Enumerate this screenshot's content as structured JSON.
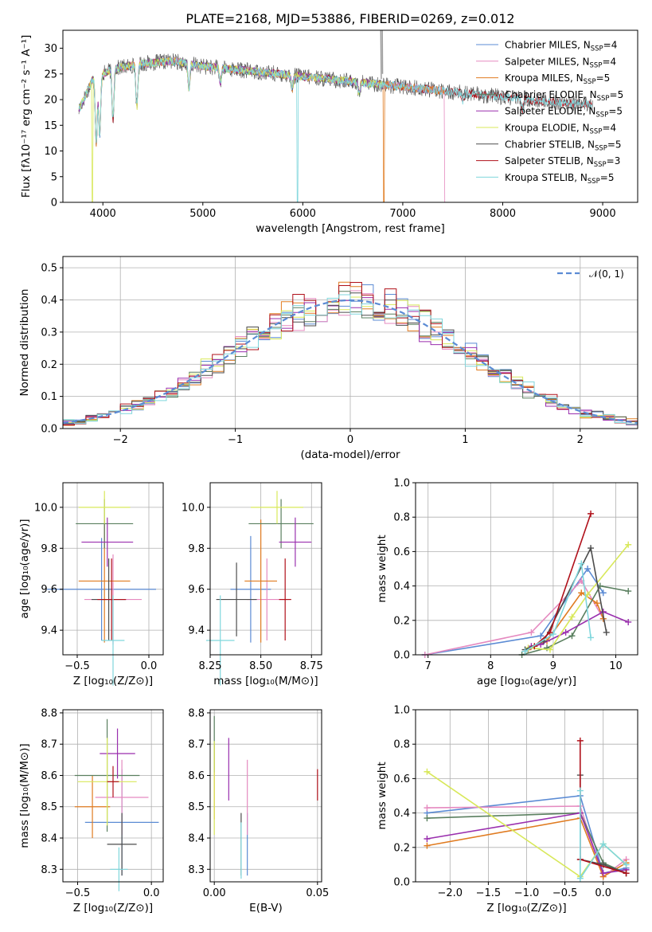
{
  "figure": {
    "title": "PLATE=2168, MJD=53886, FIBERID=0269, z=0.012"
  },
  "colors": {
    "chabrier_miles": "#5b8bd4",
    "salpeter_miles": "#e58ac0",
    "kroupa_miles": "#e07b20",
    "chabrier_elodie": "#5a7f5f",
    "salpeter_elodie": "#9a2fae",
    "kroupa_elodie": "#d8e85a",
    "chabrier_stelib": "#4d4d4d",
    "salpeter_stelib": "#b0101a",
    "kroupa_stelib": "#7fd6dc",
    "normal": "#5b8bd4"
  },
  "chart_data": [
    {
      "id": "spectrum",
      "type": "line",
      "xlabel": "wavelength [Angstrom, rest frame]",
      "ylabel": "Flux [fλ10⁻¹⁷ erg cm⁻² s⁻¹ A⁻¹]",
      "xlim": [
        3600,
        9350
      ],
      "ylim": [
        0,
        33.5
      ],
      "xticks": [
        "4000",
        "5000",
        "6000",
        "7000",
        "8000",
        "9000"
      ],
      "xtick_values": [
        4000,
        5000,
        6000,
        7000,
        8000,
        9000
      ],
      "yticks": [
        "0",
        "5",
        "10",
        "15",
        "20",
        "25",
        "30"
      ],
      "ytick_values": [
        0,
        5,
        10,
        15,
        20,
        25,
        30
      ],
      "grid": false,
      "legend_position": "top-right",
      "legend": [
        {
          "label": "Chabrier MILES, N",
          "sub": "SSP",
          "tail": "=4",
          "color": "chabrier_miles"
        },
        {
          "label": "Salpeter MILES, N",
          "sub": "SSP",
          "tail": "=4",
          "color": "salpeter_miles"
        },
        {
          "label": "Kroupa MILES, N",
          "sub": "SSP",
          "tail": "=5",
          "color": "kroupa_miles"
        },
        {
          "label": "Chabrier ELODIE, N",
          "sub": "SSP",
          "tail": "=5",
          "color": "chabrier_elodie"
        },
        {
          "label": "Salpeter ELODIE, N",
          "sub": "SSP",
          "tail": "=5",
          "color": "salpeter_elodie"
        },
        {
          "label": "Kroupa ELODIE, N",
          "sub": "SSP",
          "tail": "=4",
          "color": "kroupa_elodie"
        },
        {
          "label": "Chabrier STELIB, N",
          "sub": "SSP",
          "tail": "=5",
          "color": "chabrier_stelib"
        },
        {
          "label": "Salpeter STELIB, N",
          "sub": "SSP",
          "tail": "=3",
          "color": "salpeter_stelib"
        },
        {
          "label": "Kroupa STELIB, N",
          "sub": "SSP",
          "tail": "=5",
          "color": "kroupa_stelib"
        }
      ],
      "continuum": [
        [
          3760,
          18
        ],
        [
          3900,
          24
        ],
        [
          4100,
          26
        ],
        [
          4400,
          27
        ],
        [
          4700,
          27.5
        ],
        [
          5000,
          26.5
        ],
        [
          5500,
          25.5
        ],
        [
          6000,
          24.5
        ],
        [
          6500,
          23.5
        ],
        [
          7000,
          22.5
        ],
        [
          7500,
          21.5
        ],
        [
          8000,
          20.5
        ],
        [
          8500,
          19.5
        ],
        [
          8900,
          19
        ]
      ],
      "features": [
        [
          3934,
          6
        ],
        [
          3968,
          8
        ],
        [
          4101,
          12
        ],
        [
          4340,
          15
        ],
        [
          4861,
          20
        ],
        [
          5175,
          22
        ],
        [
          5893,
          21
        ],
        [
          6563,
          20
        ],
        [
          7600,
          19
        ],
        [
          8200,
          17
        ]
      ],
      "drops": [
        {
          "series": "kroupa_elodie",
          "x": 3895
        },
        {
          "series": "kroupa_miles",
          "x": 6810
        },
        {
          "series": "kroupa_stelib",
          "x": 5945
        },
        {
          "series": "salpeter_miles",
          "x": 7420
        }
      ]
    },
    {
      "id": "residual_hist",
      "type": "bar",
      "xlabel": "(data-model)/error",
      "ylabel": "Normed distribution",
      "xlim": [
        -2.5,
        2.5
      ],
      "ylim": [
        0,
        0.535
      ],
      "xticks": [
        "−2",
        "−1",
        "0",
        "1",
        "2"
      ],
      "xtick_values": [
        -2,
        -1,
        0,
        1,
        2
      ],
      "yticks": [
        "0.0",
        "0.1",
        "0.2",
        "0.3",
        "0.4",
        "0.5"
      ],
      "ytick_values": [
        0,
        0.1,
        0.2,
        0.3,
        0.4,
        0.5
      ],
      "grid": true,
      "legend_position": "top-right",
      "normal_label": "𝒩(0, 1)",
      "bin_width": 0.1
    },
    {
      "id": "age_vs_Z",
      "type": "scatter",
      "xlabel": "Z [log₁₀(Z/Z⊙)]",
      "ylabel": "age  [log₁₀(age/yr)]",
      "xlim": [
        -0.6,
        0.1
      ],
      "ylim": [
        9.28,
        10.12
      ],
      "xticks": [
        "−0.5",
        "0.0"
      ],
      "xtick_values": [
        -0.5,
        0.0
      ],
      "yticks": [
        "9.4",
        "9.6",
        "9.8",
        "10.0"
      ],
      "ytick_values": [
        9.4,
        9.6,
        9.8,
        10.0
      ],
      "grid": true,
      "points": [
        {
          "series": "chabrier_miles",
          "x": -0.33,
          "xerr": 0.38,
          "y": 9.6,
          "yerr": 0.25
        },
        {
          "series": "salpeter_miles",
          "x": -0.25,
          "xerr": 0.2,
          "y": 9.55,
          "yerr": 0.22
        },
        {
          "series": "kroupa_miles",
          "x": -0.31,
          "xerr": 0.18,
          "y": 9.64,
          "yerr": 0.3
        },
        {
          "series": "chabrier_elodie",
          "x": -0.31,
          "xerr": 0.2,
          "y": 9.92,
          "yerr": 0.12
        },
        {
          "series": "salpeter_elodie",
          "x": -0.29,
          "xerr": 0.18,
          "y": 9.83,
          "yerr": 0.12
        },
        {
          "series": "kroupa_elodie",
          "x": -0.31,
          "xerr": 0.18,
          "y": 10.0,
          "yerr": 0.08
        },
        {
          "series": "chabrier_stelib",
          "x": -0.28,
          "xerr": 0.12,
          "y": 9.55,
          "yerr": 0.2
        },
        {
          "series": "salpeter_stelib",
          "x": -0.26,
          "xerr": 0.1,
          "y": 9.55,
          "yerr": 0.2
        },
        {
          "series": "kroupa_stelib",
          "x": -0.25,
          "xerr": 0.08,
          "y": 9.35,
          "yerr": 0.22
        }
      ]
    },
    {
      "id": "age_vs_mass",
      "type": "scatter",
      "xlabel": "mass [log₁₀(M/M⊙)]",
      "ylabel": "",
      "xlim": [
        8.25,
        8.8
      ],
      "ylim": [
        9.28,
        10.12
      ],
      "xticks": [
        "8.25",
        "8.50",
        "8.75"
      ],
      "xtick_values": [
        8.25,
        8.5,
        8.75
      ],
      "yticks": [
        "9.4",
        "9.6",
        "9.8",
        "10.0"
      ],
      "ytick_values": [
        9.4,
        9.6,
        9.8,
        10.0
      ],
      "grid": true,
      "points": [
        {
          "series": "chabrier_miles",
          "x": 8.45,
          "xerr": 0.1,
          "y": 9.6,
          "yerr": 0.26
        },
        {
          "series": "salpeter_miles",
          "x": 8.53,
          "xerr": 0.1,
          "y": 9.55,
          "yerr": 0.2
        },
        {
          "series": "kroupa_miles",
          "x": 8.5,
          "xerr": 0.08,
          "y": 9.64,
          "yerr": 0.3
        },
        {
          "series": "chabrier_elodie",
          "x": 8.6,
          "xerr": 0.16,
          "y": 9.92,
          "yerr": 0.12
        },
        {
          "series": "salpeter_elodie",
          "x": 8.67,
          "xerr": 0.08,
          "y": 9.83,
          "yerr": 0.12
        },
        {
          "series": "kroupa_elodie",
          "x": 8.58,
          "xerr": 0.13,
          "y": 10.0,
          "yerr": 0.08
        },
        {
          "series": "chabrier_stelib",
          "x": 8.38,
          "xerr": 0.1,
          "y": 9.55,
          "yerr": 0.18
        },
        {
          "series": "salpeter_stelib",
          "x": 8.62,
          "xerr": 0.03,
          "y": 9.55,
          "yerr": 0.2
        },
        {
          "series": "kroupa_stelib",
          "x": 8.3,
          "xerr": 0.07,
          "y": 9.35,
          "yerr": 0.22
        }
      ]
    },
    {
      "id": "weight_vs_age",
      "type": "line",
      "xlabel": "age  [log₁₀(age/yr)]",
      "ylabel": "mass weight",
      "xlim": [
        6.8,
        10.35
      ],
      "ylim": [
        0,
        1.0
      ],
      "xticks": [
        "7",
        "8",
        "9",
        "10"
      ],
      "xtick_values": [
        7,
        8,
        9,
        10
      ],
      "yticks": [
        "0.0",
        "0.2",
        "0.4",
        "0.6",
        "0.8",
        "1.0"
      ],
      "ytick_values": [
        0,
        0.2,
        0.4,
        0.6,
        0.8,
        1.0
      ],
      "grid": true,
      "series": [
        {
          "series": "chabrier_miles",
          "x": [
            6.95,
            8.8,
            9.55,
            9.8
          ],
          "y": [
            0.0,
            0.11,
            0.5,
            0.36
          ]
        },
        {
          "series": "salpeter_miles",
          "x": [
            6.95,
            8.65,
            9.45,
            9.8
          ],
          "y": [
            0.0,
            0.13,
            0.43,
            0.21
          ]
        },
        {
          "series": "kroupa_miles",
          "x": [
            8.6,
            8.9,
            9.45,
            9.7,
            9.8
          ],
          "y": [
            0.03,
            0.08,
            0.36,
            0.3,
            0.21
          ]
        },
        {
          "series": "chabrier_elodie",
          "x": [
            8.5,
            8.9,
            9.3,
            9.75,
            10.2
          ],
          "y": [
            0.0,
            0.04,
            0.11,
            0.4,
            0.37
          ]
        },
        {
          "series": "salpeter_elodie",
          "x": [
            8.65,
            8.8,
            9.2,
            9.8,
            10.2
          ],
          "y": [
            0.05,
            0.06,
            0.13,
            0.25,
            0.19
          ]
        },
        {
          "series": "kroupa_elodie",
          "x": [
            8.6,
            8.95,
            9.3,
            9.55,
            10.2
          ],
          "y": [
            0.04,
            0.03,
            0.22,
            0.35,
            0.64
          ]
        },
        {
          "series": "chabrier_stelib",
          "x": [
            8.55,
            8.85,
            9.6,
            9.85
          ],
          "y": [
            0.03,
            0.08,
            0.62,
            0.13
          ]
        },
        {
          "series": "salpeter_stelib",
          "x": [
            8.7,
            8.95,
            9.6
          ],
          "y": [
            0.05,
            0.13,
            0.82
          ]
        },
        {
          "series": "kroupa_stelib",
          "x": [
            8.55,
            9.0,
            9.45,
            9.6
          ],
          "y": [
            0.02,
            0.12,
            0.53,
            0.1
          ]
        }
      ]
    },
    {
      "id": "mass_vs_Z",
      "type": "scatter",
      "xlabel": "Z [log₁₀(Z/Z⊙)]",
      "ylabel": "mass [log₁₀(M/M⊙)]",
      "xlim": [
        -0.6,
        0.08
      ],
      "ylim": [
        8.26,
        8.81
      ],
      "xticks": [
        "−0.5",
        "0.0"
      ],
      "xtick_values": [
        -0.5,
        0.0
      ],
      "yticks": [
        "8.3",
        "8.4",
        "8.5",
        "8.6",
        "8.7",
        "8.8"
      ],
      "ytick_values": [
        8.3,
        8.4,
        8.5,
        8.6,
        8.7,
        8.8
      ],
      "grid": true,
      "points": [
        {
          "series": "chabrier_miles",
          "x": -0.2,
          "xerr": 0.25,
          "y": 8.45,
          "yerr": 0.17
        },
        {
          "series": "salpeter_miles",
          "x": -0.2,
          "xerr": 0.18,
          "y": 8.53,
          "yerr": 0.12
        },
        {
          "series": "kroupa_miles",
          "x": -0.4,
          "xerr": 0.12,
          "y": 8.5,
          "yerr": 0.1
        },
        {
          "series": "chabrier_elodie",
          "x": -0.3,
          "xerr": 0.22,
          "y": 8.6,
          "yerr": 0.18
        },
        {
          "series": "salpeter_elodie",
          "x": -0.23,
          "xerr": 0.12,
          "y": 8.67,
          "yerr": 0.08
        },
        {
          "series": "kroupa_elodie",
          "x": -0.3,
          "xerr": 0.2,
          "y": 8.58,
          "yerr": 0.14
        },
        {
          "series": "chabrier_stelib",
          "x": -0.2,
          "xerr": 0.1,
          "y": 8.38,
          "yerr": 0.1
        },
        {
          "series": "salpeter_stelib",
          "x": -0.26,
          "xerr": 0.04,
          "y": 8.58,
          "yerr": 0.05
        },
        {
          "series": "kroupa_stelib",
          "x": -0.22,
          "xerr": 0.06,
          "y": 8.3,
          "yerr": 0.07
        }
      ]
    },
    {
      "id": "mass_vs_ebv",
      "type": "scatter",
      "xlabel": "E(B-V)",
      "ylabel": "",
      "xlim": [
        -0.002,
        0.052
      ],
      "ylim": [
        8.26,
        8.81
      ],
      "xticks": [
        "0.00",
        "0.05"
      ],
      "xtick_values": [
        0.0,
        0.05
      ],
      "yticks": [
        "8.3",
        "8.4",
        "8.5",
        "8.6",
        "8.7",
        "8.8"
      ],
      "ytick_values": [
        8.3,
        8.4,
        8.5,
        8.6,
        8.7,
        8.8
      ],
      "grid": true,
      "points": [
        {
          "series": "chabrier_miles",
          "x": 0.016,
          "y": 8.38,
          "yerr": 0.1
        },
        {
          "series": "salpeter_miles",
          "x": 0.016,
          "y": 8.53,
          "yerr": 0.12
        },
        {
          "series": "kroupa_miles",
          "x": 0.0,
          "y": 8.58,
          "yerr": 0.12
        },
        {
          "series": "chabrier_elodie",
          "x": 0.0,
          "y": 8.7,
          "yerr": 0.09
        },
        {
          "series": "salpeter_elodie",
          "x": 0.007,
          "y": 8.62,
          "yerr": 0.1
        },
        {
          "series": "kroupa_elodie",
          "x": 0.0,
          "y": 8.56,
          "yerr": 0.15
        },
        {
          "series": "chabrier_stelib",
          "x": 0.013,
          "y": 8.38,
          "yerr": 0.1
        },
        {
          "series": "salpeter_stelib",
          "x": 0.05,
          "y": 8.57,
          "yerr": 0.05
        },
        {
          "series": "kroupa_stelib",
          "x": 0.013,
          "y": 8.36,
          "yerr": 0.09
        }
      ]
    },
    {
      "id": "weight_vs_Z",
      "type": "line",
      "xlabel": "Z [log₁₀(Z/Z⊙)]",
      "ylabel": "mass weight",
      "xlim": [
        -2.45,
        0.45
      ],
      "ylim": [
        0,
        1.0
      ],
      "xticks": [
        "−2.0",
        "−1.5",
        "−1.0",
        "−0.5",
        "0.0"
      ],
      "xtick_values": [
        -2.0,
        -1.5,
        -1.0,
        -0.5,
        0.0
      ],
      "yticks": [
        "0.0",
        "0.2",
        "0.4",
        "0.6",
        "0.8",
        "1.0"
      ],
      "ytick_values": [
        0,
        0.2,
        0.4,
        0.6,
        0.8,
        1.0
      ],
      "grid": true,
      "series": [
        {
          "series": "chabrier_miles",
          "x": [
            -2.3,
            -0.3,
            0.0,
            0.3
          ],
          "y": [
            0.4,
            0.5,
            0.05,
            0.08
          ]
        },
        {
          "series": "salpeter_miles",
          "x": [
            -2.3,
            -0.3,
            0.0,
            0.3
          ],
          "y": [
            0.43,
            0.44,
            0.03,
            0.13
          ]
        },
        {
          "series": "kroupa_miles",
          "x": [
            -2.3,
            -0.3,
            0.0,
            0.3
          ],
          "y": [
            0.21,
            0.37,
            0.03,
            0.11
          ]
        },
        {
          "series": "chabrier_elodie",
          "x": [
            -2.3,
            -0.3,
            0.0,
            0.3
          ],
          "y": [
            0.37,
            0.4,
            0.11,
            0.05
          ]
        },
        {
          "series": "salpeter_elodie",
          "x": [
            -2.3,
            -0.3,
            0.0,
            0.3
          ],
          "y": [
            0.25,
            0.4,
            0.05,
            0.07
          ]
        },
        {
          "series": "kroupa_elodie",
          "x": [
            -2.3,
            -0.3,
            0.0,
            0.3
          ],
          "y": [
            0.64,
            0.03,
            0.22,
            0.1
          ]
        },
        {
          "series": "chabrier_stelib",
          "x": [
            -0.3,
            -0.3,
            0.0,
            0.3
          ],
          "y": [
            0.62,
            0.13,
            0.1,
            0.05
          ]
        },
        {
          "series": "salpeter_stelib",
          "x": [
            -0.3,
            -0.3,
            0.3
          ],
          "y": [
            0.82,
            0.13,
            0.05
          ]
        },
        {
          "series": "kroupa_stelib",
          "x": [
            -0.3,
            -0.3,
            0.0,
            0.3
          ],
          "y": [
            0.53,
            0.02,
            0.22,
            0.1
          ]
        }
      ]
    }
  ]
}
